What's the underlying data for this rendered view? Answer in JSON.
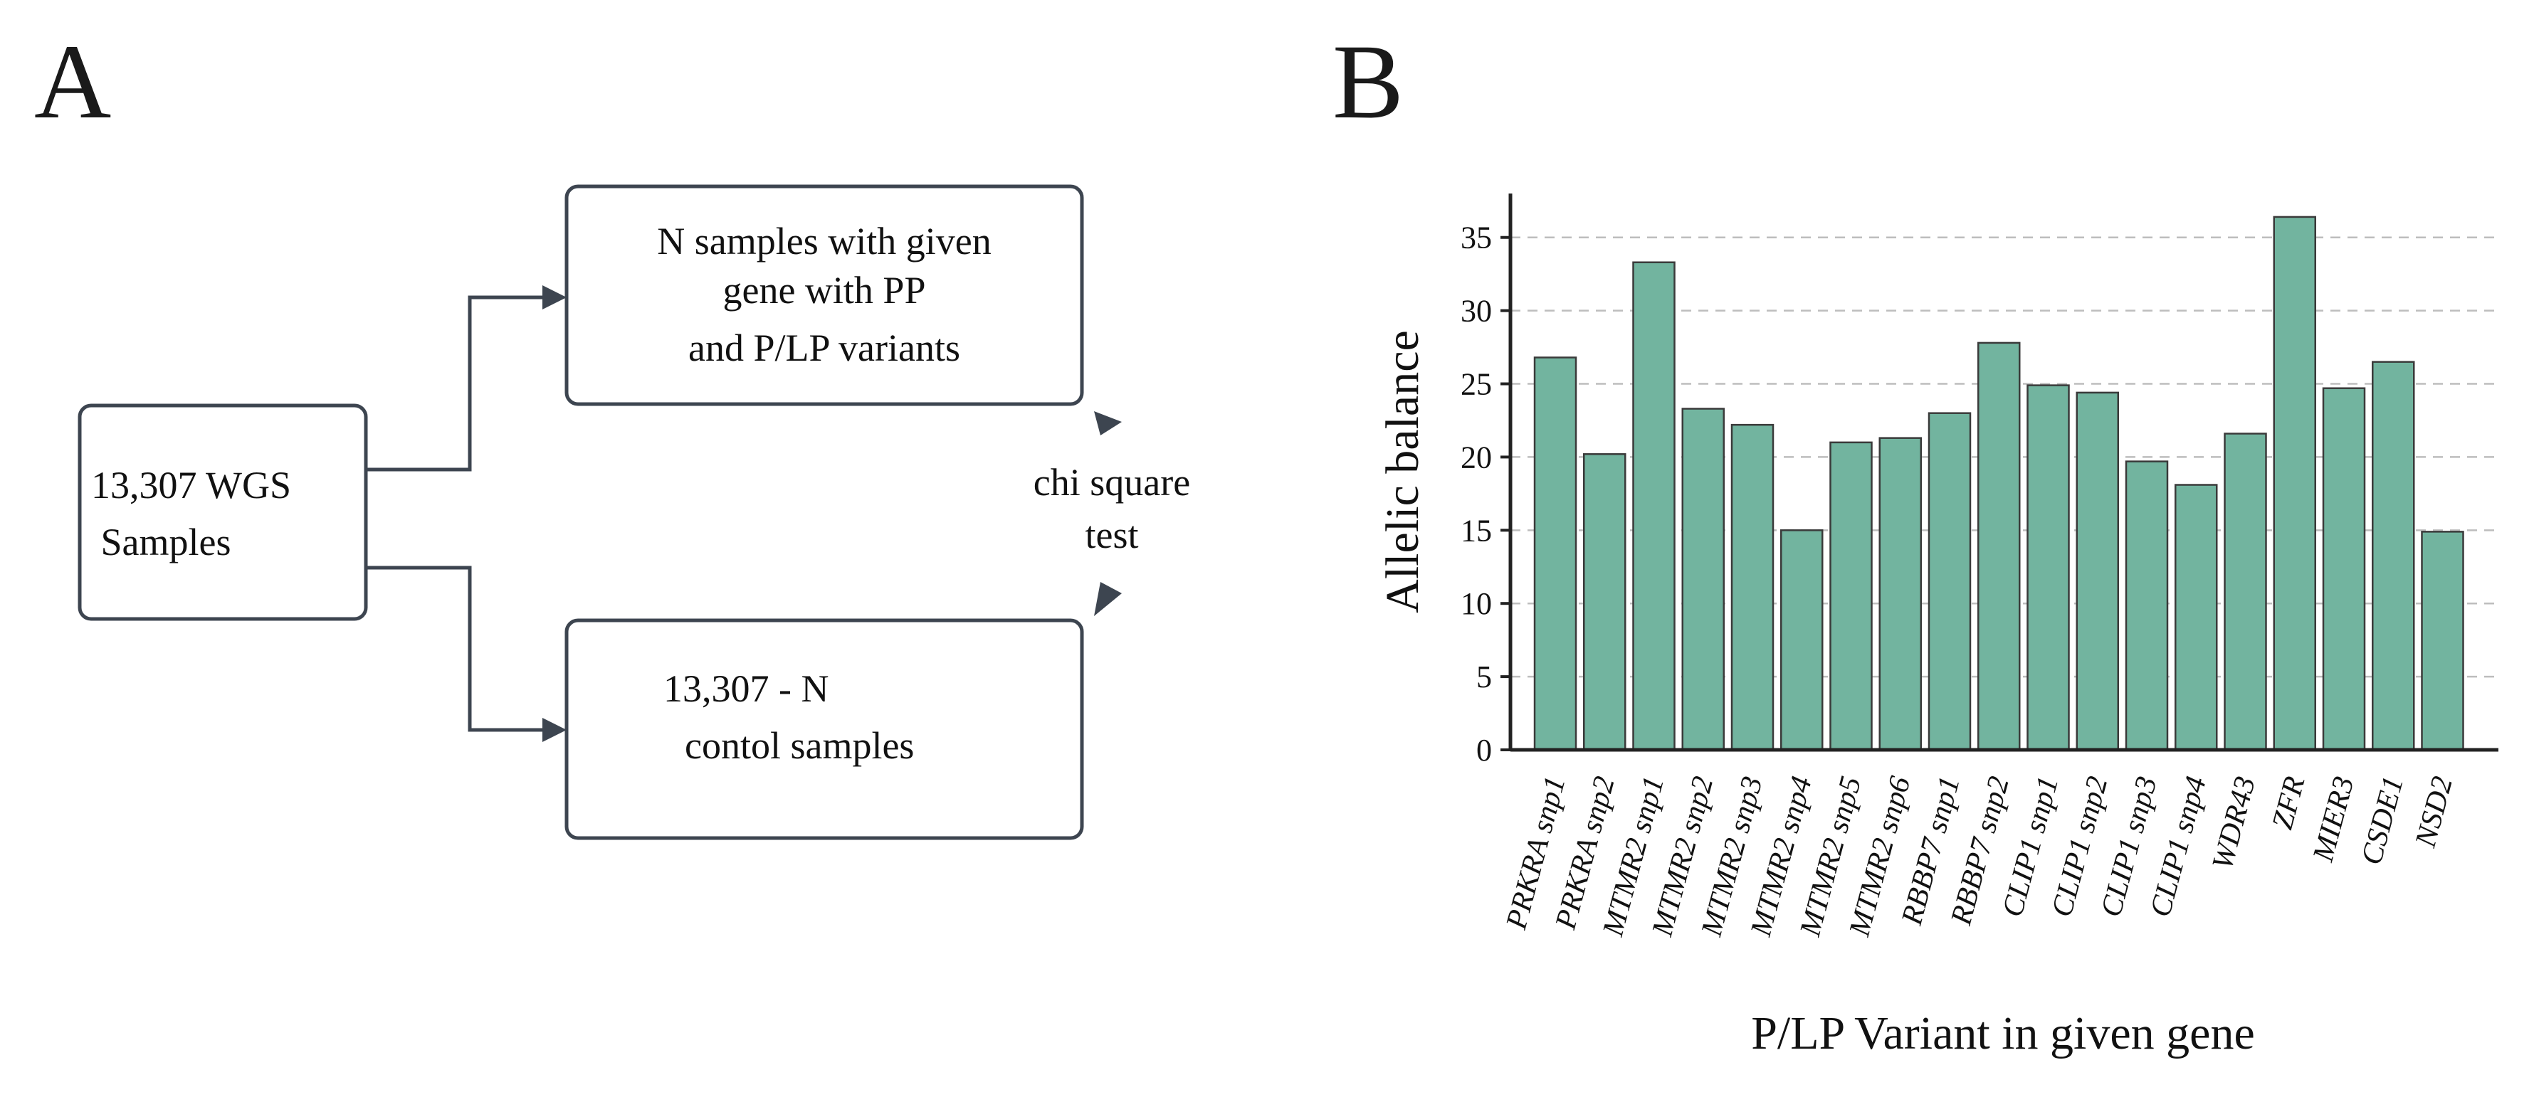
{
  "panels": {
    "a_label": "A",
    "b_label": "B"
  },
  "flowchart": {
    "source_box": {
      "lines": [
        "13,307 WGS",
        " Samples"
      ]
    },
    "case_box": {
      "lines": [
        "N samples with given",
        "gene with PP",
        "and P/LP variants"
      ]
    },
    "control_box": {
      "lines": [
        "13,307 - N",
        "contol samples"
      ]
    },
    "test_label": {
      "lines": [
        "chi square",
        "test"
      ]
    }
  },
  "colors": {
    "bar": "#72b49f",
    "line": "#3d4550"
  },
  "chart_data": {
    "type": "bar",
    "title": "",
    "xlabel": "P/LP Variant in given gene",
    "ylabel": "Allelic balance",
    "ylim": [
      0,
      38
    ],
    "yticks": [
      0,
      5,
      10,
      15,
      20,
      25,
      30,
      35
    ],
    "grid": true,
    "categories": [
      "PRKRA snp1",
      "PRKRA snp2",
      "MTMR2 snp1",
      "MTMR2 snp2",
      "MTMR2 snp3",
      "MTMR2 snp4",
      "MTMR2 snp5",
      "MTMR2 snp6",
      "RBBP7 snp1",
      "RBBP7 snp2",
      "CLIP1 snp1",
      "CLIP1 snp2",
      "CLIP1 snp3",
      "CLIP1 snp4",
      "WDR43",
      "ZFR",
      "MIER3",
      "CSDE1",
      "NSD2"
    ],
    "values": [
      26.8,
      20.2,
      33.3,
      23.3,
      22.2,
      15.0,
      21.0,
      21.3,
      23.0,
      27.8,
      24.9,
      24.4,
      19.7,
      18.1,
      21.6,
      36.4,
      24.7,
      26.5,
      14.9
    ]
  }
}
